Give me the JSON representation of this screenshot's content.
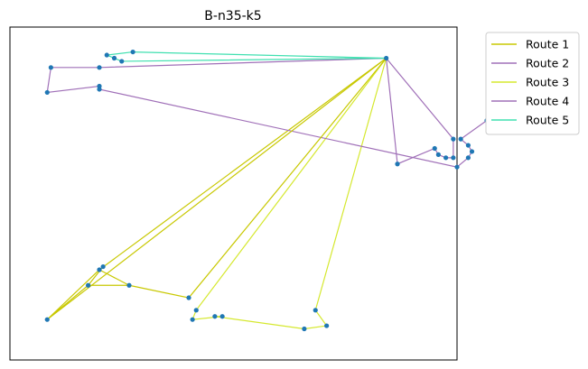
{
  "chart_data": {
    "type": "line",
    "title": "B-n35-k5",
    "xlabel": "",
    "ylabel": "",
    "grid": false,
    "axis_ticks": false,
    "legend_placement": "outside-top-right",
    "depot": [
      98,
      90
    ],
    "xlim": [
      -3,
      117
    ],
    "ylim": [
      -7,
      100
    ],
    "series": [
      {
        "name": "Route 1",
        "color": "#c8c800",
        "points": [
          [
            98,
            90
          ],
          [
            21,
            22
          ],
          [
            7,
            6
          ],
          [
            18,
            17
          ],
          [
            29,
            17
          ],
          [
            21,
            22
          ]
        ]
      },
      {
        "name": "Route 2",
        "color": "#a070b8",
        "points": [
          [
            98,
            90
          ],
          [
            116,
            64
          ],
          [
            116,
            58
          ],
          [
            114,
            58
          ],
          [
            112,
            59
          ],
          [
            111,
            61
          ],
          [
            101,
            56
          ],
          [
            98,
            90
          ]
        ]
      },
      {
        "name": "Route 3",
        "color": "#d5e82e",
        "points": [
          [
            98,
            90
          ],
          [
            79,
            9
          ],
          [
            82,
            4
          ],
          [
            76,
            3
          ],
          [
            52,
            7
          ],
          [
            54,
            7
          ],
          [
            46,
            6
          ],
          [
            47,
            9
          ],
          [
            98,
            90
          ]
        ]
      },
      {
        "name": "Route 4",
        "color": "#a070b8",
        "points": [
          [
            98,
            90
          ],
          [
            21,
            87
          ],
          [
            8,
            87
          ],
          [
            7,
            79
          ],
          [
            21,
            81
          ],
          [
            21,
            80
          ],
          [
            117,
            55
          ],
          [
            120,
            58
          ],
          [
            121,
            60
          ],
          [
            120,
            62
          ],
          [
            118,
            64
          ],
          [
            125,
            70
          ]
        ]
      },
      {
        "name": "Route 5",
        "color": "#40e0b0",
        "points": [
          [
            98,
            90
          ],
          [
            27,
            89
          ],
          [
            25,
            90
          ],
          [
            23,
            91
          ],
          [
            30,
            92
          ],
          [
            98,
            90
          ]
        ]
      }
    ],
    "extra_segments": [
      {
        "series": "Route 1",
        "points": [
          [
            7,
            6
          ],
          [
            98,
            90
          ]
        ]
      },
      {
        "series": "Route 1",
        "points": [
          [
            18,
            17
          ],
          [
            22,
            23
          ]
        ]
      },
      {
        "series": "Route 1",
        "points": [
          [
            29,
            17
          ],
          [
            45,
            13
          ],
          [
            98,
            90
          ]
        ]
      }
    ],
    "marker_color": "#1f77b4"
  }
}
